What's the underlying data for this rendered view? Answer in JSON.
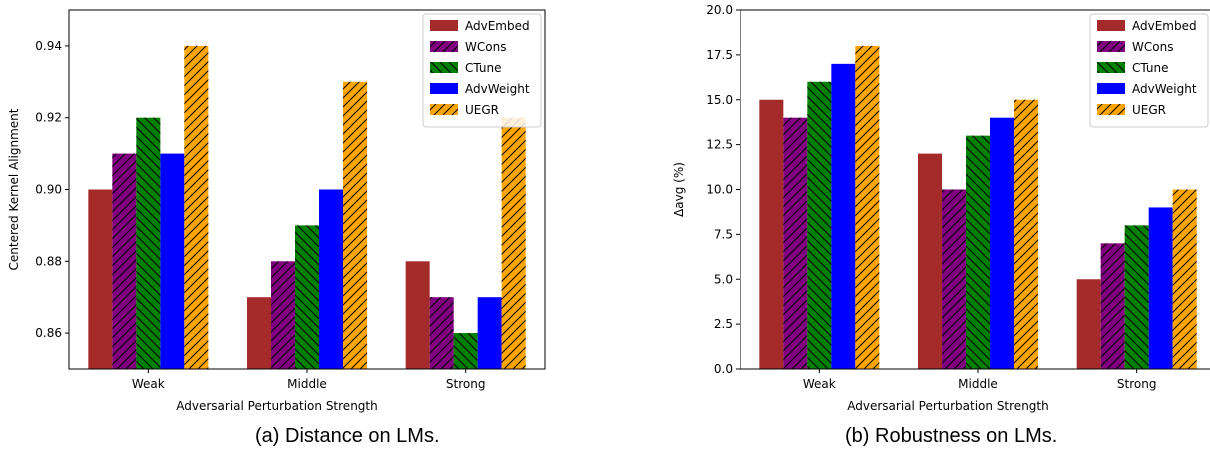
{
  "figures": [
    {
      "caption": "(a) Distance on LMs.",
      "chart_data": {
        "type": "bar",
        "categories": [
          "Weak",
          "Middle",
          "Strong"
        ],
        "series": [
          {
            "name": "AdvEmbed",
            "values": [
              0.9,
              0.87,
              0.88
            ]
          },
          {
            "name": "WCons",
            "values": [
              0.91,
              0.88,
              0.87
            ]
          },
          {
            "name": "CTune",
            "values": [
              0.92,
              0.89,
              0.86
            ]
          },
          {
            "name": "AdvWeight",
            "values": [
              0.91,
              0.9,
              0.87
            ]
          },
          {
            "name": "UEGR",
            "values": [
              0.94,
              0.93,
              0.92
            ]
          }
        ],
        "xlabel": "Adversarial Perturbation Strength",
        "ylabel": "Centered Kernel Alignment",
        "ylim": [
          0.85,
          0.95
        ],
        "yticks": [
          "0.86",
          "0.88",
          "0.90",
          "0.92",
          "0.94"
        ],
        "legend": "top-right",
        "grid": false
      }
    },
    {
      "caption": "(b) Robustness on LMs.",
      "chart_data": {
        "type": "bar",
        "categories": [
          "Weak",
          "Middle",
          "Strong"
        ],
        "series": [
          {
            "name": "AdvEmbed",
            "values": [
              15,
              12,
              5
            ]
          },
          {
            "name": "WCons",
            "values": [
              14,
              10,
              7
            ]
          },
          {
            "name": "CTune",
            "values": [
              16,
              13,
              8
            ]
          },
          {
            "name": "AdvWeight",
            "values": [
              17,
              14,
              9
            ]
          },
          {
            "name": "UEGR",
            "values": [
              18,
              15,
              10
            ]
          }
        ],
        "xlabel": "Adversarial Perturbation Strength",
        "ylabel": "Δavg (%)",
        "ylim": [
          0,
          20
        ],
        "yticks": [
          "0.0",
          "2.5",
          "5.0",
          "7.5",
          "10.0",
          "12.5",
          "15.0",
          "17.5",
          "20.0"
        ],
        "legend": "top-right",
        "grid": false
      }
    }
  ],
  "series_styles": [
    {
      "color": "#a52a2a",
      "hatch": "none"
    },
    {
      "color": "#800080",
      "hatch": "diag"
    },
    {
      "color": "#008000",
      "hatch": "backdiag"
    },
    {
      "color": "#0000ff",
      "hatch": "none"
    },
    {
      "color": "#ffa500",
      "hatch": "diag"
    }
  ]
}
